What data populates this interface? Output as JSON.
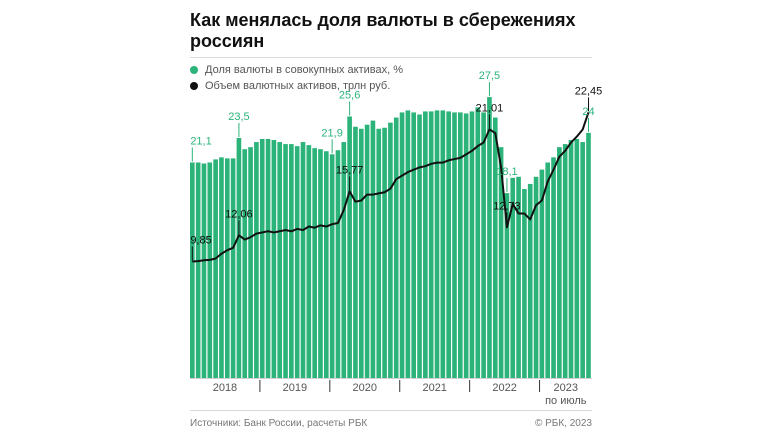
{
  "title": "Как менялась доля валюты в сбережениях россиян",
  "legend": [
    {
      "label": "Доля валюты в совокупных активах, %",
      "color": "#2bb37a"
    },
    {
      "label": "Объем валютных активов, трлн руб.",
      "color": "#111111"
    }
  ],
  "footer": {
    "source": "Источники: Банк России, расчеты РБК",
    "copyright": "© РБК, 2023"
  },
  "chart_data": {
    "type": "bar",
    "x_labels": [
      "2018",
      "2019",
      "2020",
      "2021",
      "2022",
      "2023"
    ],
    "x_note": "по июль",
    "series": [
      {
        "name": "Доля валюты в совокупных активах, %",
        "type": "bar",
        "color": "#2bb37a",
        "values": [
          21.1,
          21.1,
          21.0,
          21.1,
          21.4,
          21.6,
          21.5,
          21.5,
          23.5,
          22.4,
          22.6,
          23.1,
          23.4,
          23.4,
          23.3,
          23.1,
          22.9,
          22.9,
          22.7,
          23.1,
          22.8,
          22.5,
          22.4,
          22.2,
          21.9,
          22.3,
          23.1,
          25.6,
          24.6,
          24.4,
          24.8,
          25.2,
          24.4,
          24.5,
          25.0,
          25.5,
          26.0,
          26.2,
          26.0,
          25.8,
          26.1,
          26.1,
          26.2,
          26.2,
          26.1,
          26.0,
          26.0,
          25.9,
          26.1,
          26.5,
          26.0,
          27.5,
          25.5,
          22.6,
          18.1,
          19.6,
          19.7,
          18.5,
          19.0,
          19.7,
          20.4,
          21.1,
          21.6,
          22.6,
          22.9,
          23.3,
          23.4,
          23.1,
          24.0
        ],
        "labels": [
          {
            "index": 0,
            "text": "21,1"
          },
          {
            "index": 8,
            "text": "23,5"
          },
          {
            "index": 24,
            "text": "21,9"
          },
          {
            "index": 27,
            "text": "25,6"
          },
          {
            "index": 51,
            "text": "27,5"
          },
          {
            "index": 54,
            "text": "18,1"
          },
          {
            "index": 68,
            "text": "24"
          }
        ]
      },
      {
        "name": "Объем валютных активов, трлн руб.",
        "type": "line",
        "color": "#111111",
        "values": [
          9.85,
          9.88,
          9.95,
          9.98,
          10.1,
          10.5,
          10.8,
          11.0,
          12.06,
          11.7,
          11.9,
          12.2,
          12.3,
          12.4,
          12.3,
          12.4,
          12.5,
          12.4,
          12.6,
          12.5,
          12.8,
          12.7,
          12.9,
          12.8,
          13.0,
          13.1,
          14.2,
          15.77,
          14.9,
          15.0,
          15.5,
          15.5,
          15.6,
          15.7,
          16.0,
          16.8,
          17.1,
          17.4,
          17.6,
          17.8,
          17.9,
          18.1,
          18.2,
          18.2,
          18.4,
          18.5,
          18.6,
          18.9,
          19.2,
          19.6,
          19.9,
          21.01,
          20.7,
          17.8,
          12.73,
          14.7,
          13.9,
          13.9,
          13.4,
          14.6,
          15.0,
          16.6,
          17.6,
          18.7,
          19.2,
          19.9,
          20.4,
          21.0,
          22.45
        ],
        "labels": [
          {
            "index": 0,
            "text": "9,85"
          },
          {
            "index": 8,
            "text": "12,06"
          },
          {
            "index": 27,
            "text": "15,77"
          },
          {
            "index": 51,
            "text": "21,01"
          },
          {
            "index": 54,
            "text": "12,73"
          },
          {
            "index": 68,
            "text": "22,45"
          }
        ]
      }
    ],
    "ylim_bar": [
      0,
      28
    ],
    "ylim_line": [
      0,
      24
    ]
  }
}
